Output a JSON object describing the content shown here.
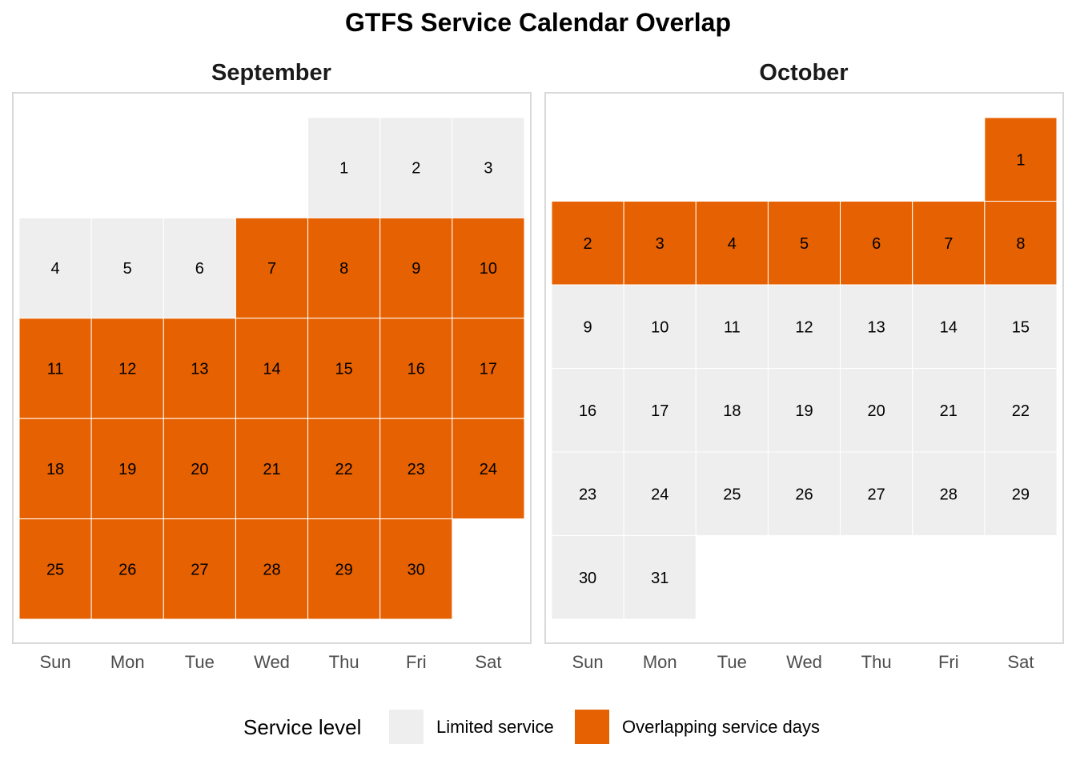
{
  "chart_data": {
    "type": "heatmap",
    "title": "GTFS Service Calendar Overlap",
    "weekdays": [
      "Sun",
      "Mon",
      "Tue",
      "Wed",
      "Thu",
      "Fri",
      "Sat"
    ],
    "legend": {
      "title": "Service level",
      "position": "bottom",
      "entries": [
        {
          "label": "Limited service",
          "color": "#EEEEEE"
        },
        {
          "label": "Overlapping service days",
          "color": "#E66101"
        }
      ]
    },
    "months": [
      {
        "name": "September",
        "first_weekday": 4,
        "days": 30,
        "overlap_days": [
          7,
          8,
          9,
          10,
          11,
          12,
          13,
          14,
          15,
          16,
          17,
          18,
          19,
          20,
          21,
          22,
          23,
          24,
          25,
          26,
          27,
          28,
          29,
          30
        ]
      },
      {
        "name": "October",
        "first_weekday": 6,
        "days": 31,
        "overlap_days": [
          1,
          2,
          3,
          4,
          5,
          6,
          7,
          8
        ]
      }
    ]
  }
}
